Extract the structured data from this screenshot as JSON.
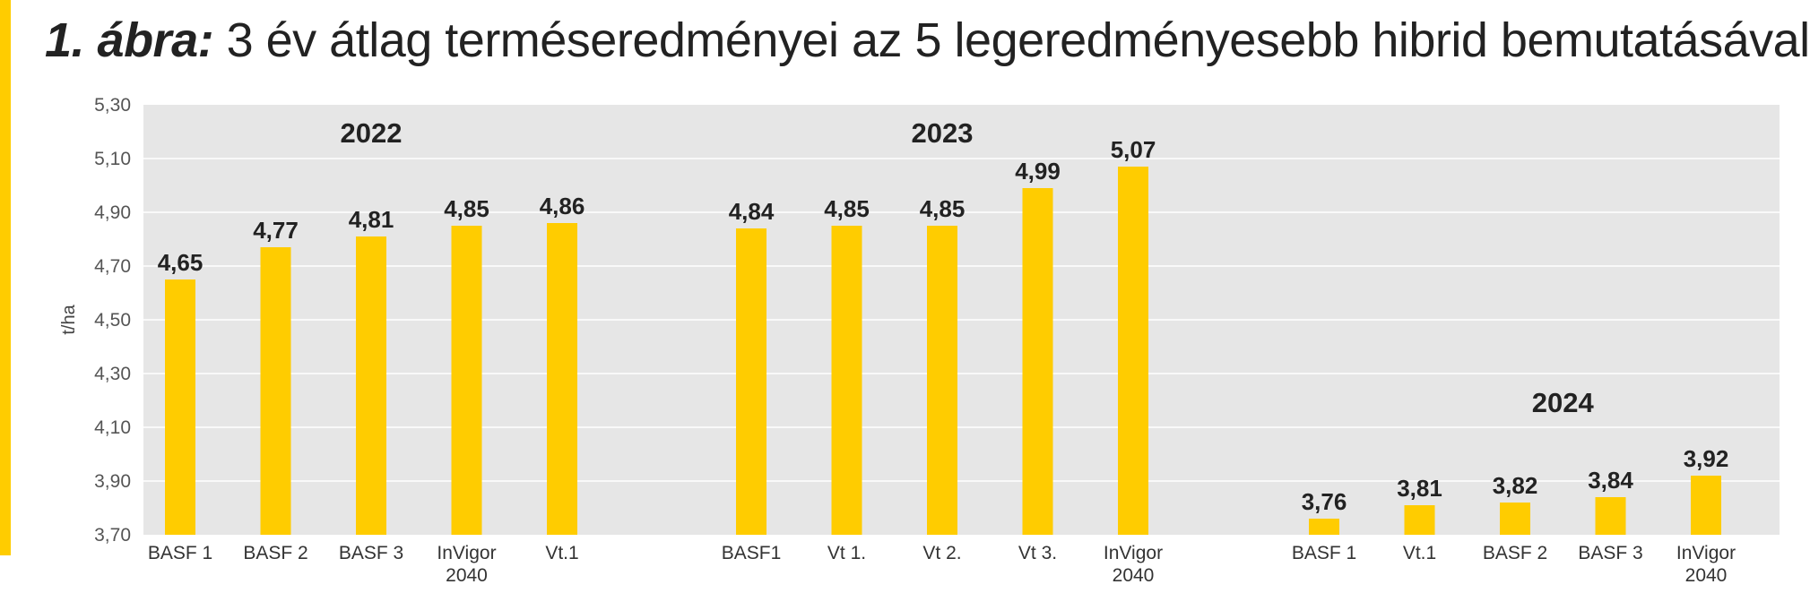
{
  "title": {
    "label": "1. ábra:",
    "text": "3 év átlag terméseredményei az 5 legeredményesebb hibrid bemutatásával"
  },
  "colors": {
    "bar": "#FFCC00",
    "plot_bg": "#E6E6E6",
    "gridline": "#FFFFFF",
    "accent": "#FFCC00"
  },
  "chart_data": {
    "type": "bar",
    "ylabel": "t/ha",
    "ylim": [
      3.7,
      5.3
    ],
    "yticks": [
      "5,30",
      "5,10",
      "4,90",
      "4,70",
      "4,50",
      "4,30",
      "4,10",
      "3,90",
      "3,70"
    ],
    "ytick_values": [
      5.3,
      5.1,
      4.9,
      4.7,
      4.5,
      4.3,
      4.1,
      3.9,
      3.7
    ],
    "grid": true,
    "groups": [
      {
        "year": "2022",
        "bars": [
          {
            "category": [
              "BASF 1"
            ],
            "value": 4.65,
            "label": "4,65"
          },
          {
            "category": [
              "BASF 2"
            ],
            "value": 4.77,
            "label": "4,77"
          },
          {
            "category": [
              "BASF 3"
            ],
            "value": 4.81,
            "label": "4,81"
          },
          {
            "category": [
              "InVigor",
              "2040"
            ],
            "value": 4.85,
            "label": "4,85"
          },
          {
            "category": [
              "Vt.1"
            ],
            "value": 4.86,
            "label": "4,86"
          }
        ]
      },
      {
        "year": "2023",
        "bars": [
          {
            "category": [
              "BASF1"
            ],
            "value": 4.84,
            "label": "4,84"
          },
          {
            "category": [
              "Vt 1."
            ],
            "value": 4.85,
            "label": "4,85"
          },
          {
            "category": [
              "Vt 2."
            ],
            "value": 4.85,
            "label": "4,85"
          },
          {
            "category": [
              "Vt 3."
            ],
            "value": 4.99,
            "label": "4,99"
          },
          {
            "category": [
              "InVigor",
              "2040"
            ],
            "value": 5.07,
            "label": "5,07"
          }
        ]
      },
      {
        "year": "2024",
        "bars": [
          {
            "category": [
              "BASF 1"
            ],
            "value": 3.76,
            "label": "3,76"
          },
          {
            "category": [
              "Vt.1"
            ],
            "value": 3.81,
            "label": "3,81"
          },
          {
            "category": [
              "BASF 2"
            ],
            "value": 3.82,
            "label": "3,82"
          },
          {
            "category": [
              "BASF 3"
            ],
            "value": 3.84,
            "label": "3,84"
          },
          {
            "category": [
              "InVigor",
              "2040"
            ],
            "value": 3.92,
            "label": "3,92"
          }
        ]
      }
    ]
  }
}
